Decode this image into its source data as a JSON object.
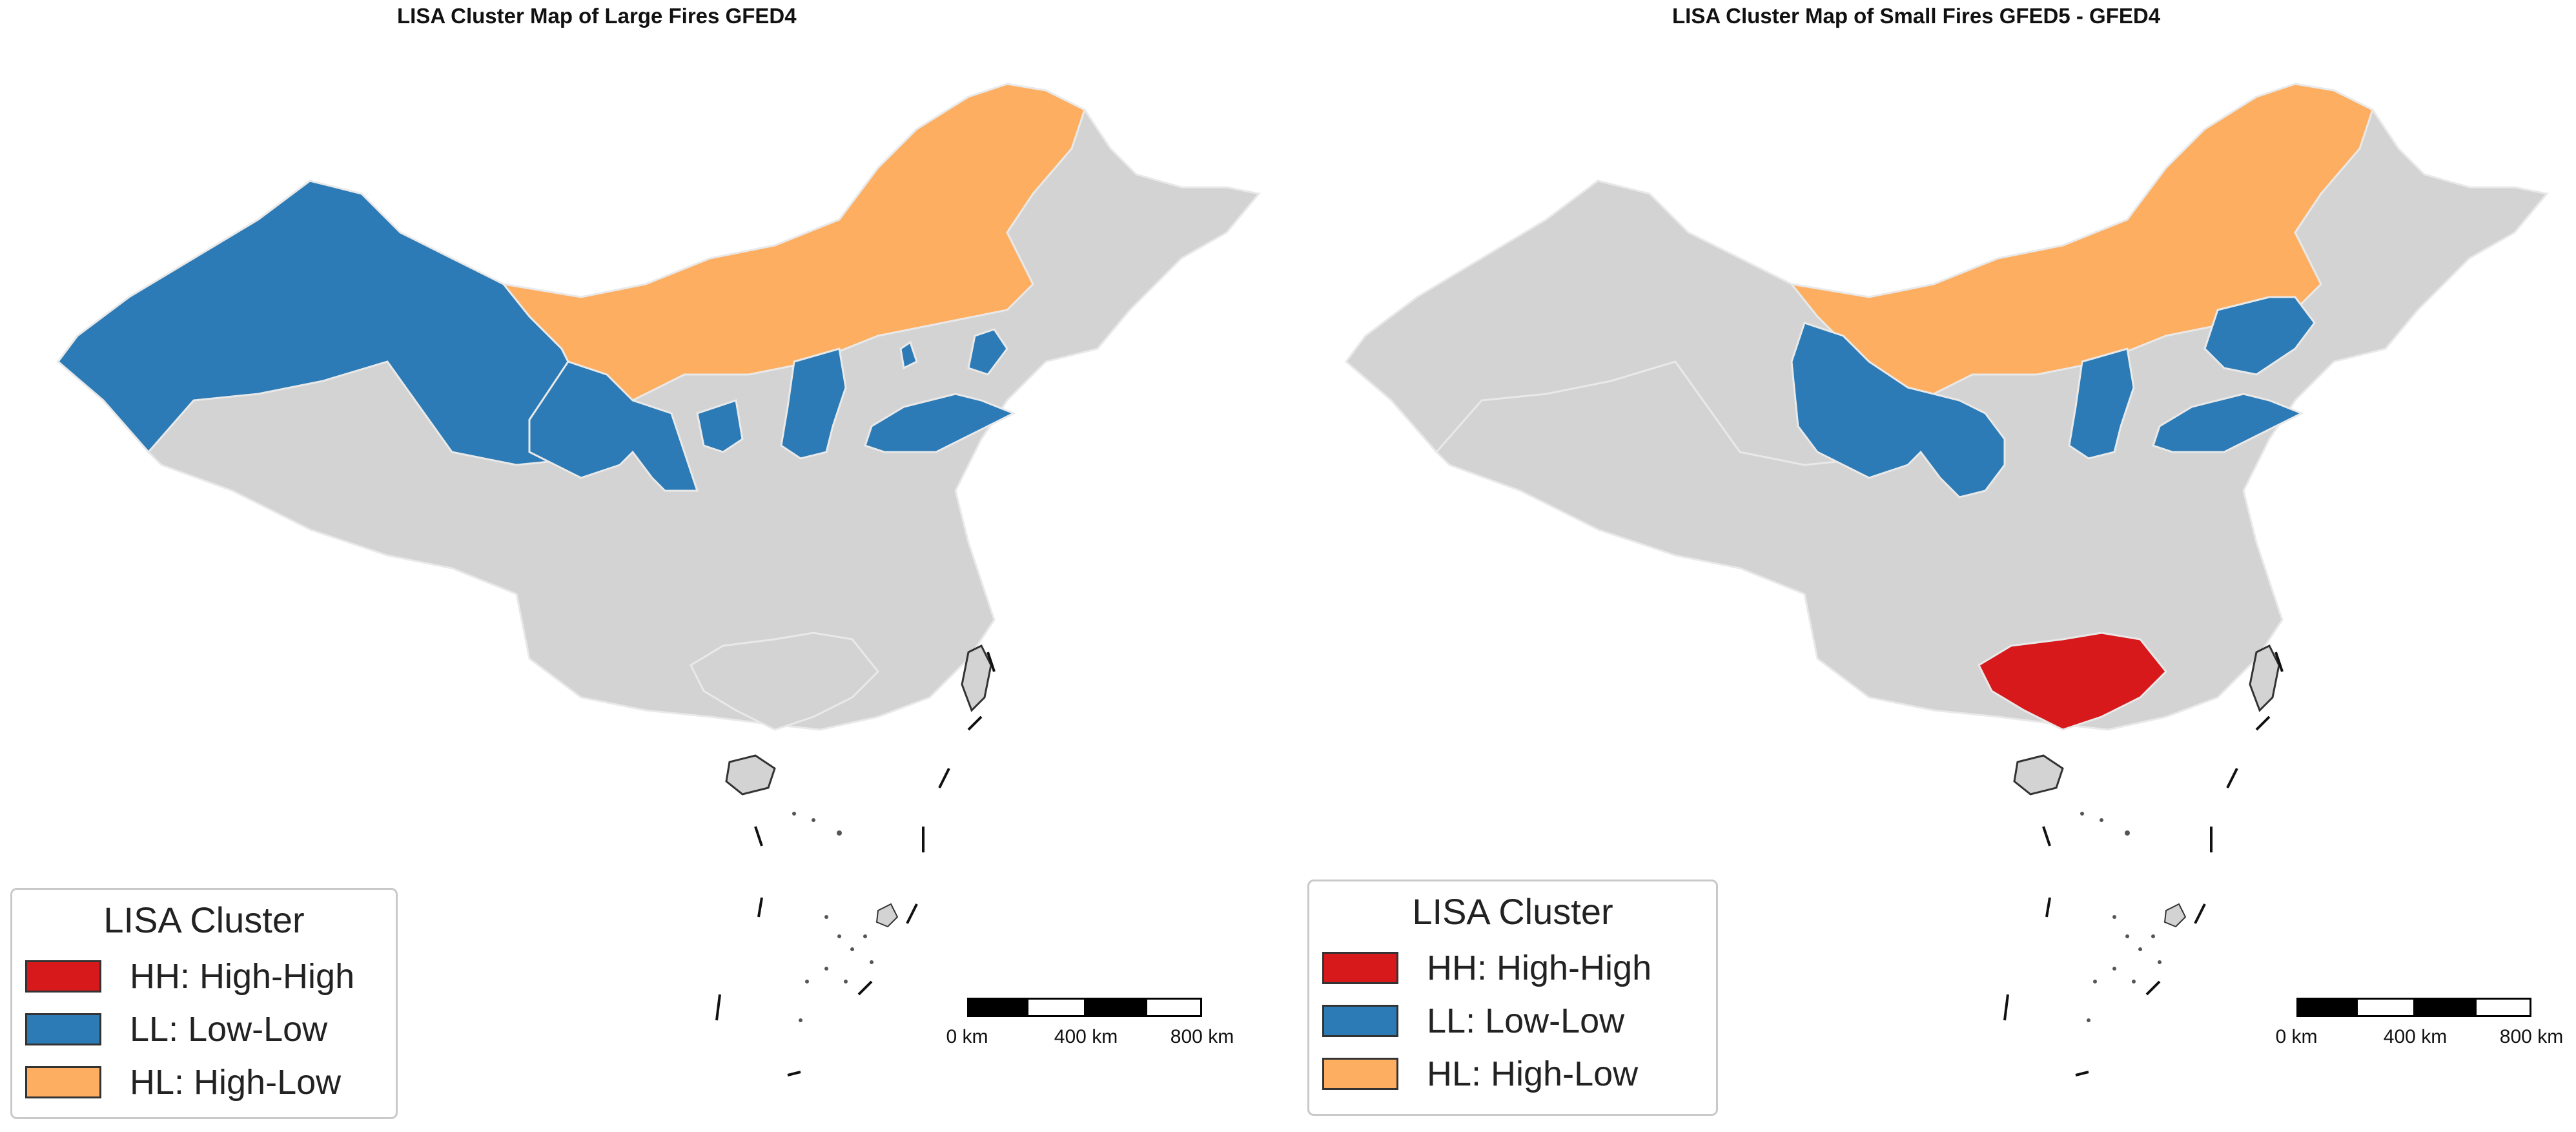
{
  "colors": {
    "HH": "#d7191c",
    "LL": "#2c7bb6",
    "HL": "#fdae61",
    "background_region": "#d3d3d3",
    "region_border": "#e9e9e9"
  },
  "legend": {
    "title": "LISA Cluster",
    "items": [
      {
        "key": "HH",
        "label": "HH: High-High",
        "color": "#d7191c"
      },
      {
        "key": "LL",
        "label": "LL: Low-Low",
        "color": "#2c7bb6"
      },
      {
        "key": "HL",
        "label": "HL: High-Low",
        "color": "#fdae61"
      }
    ]
  },
  "scale_bar": {
    "labels": [
      "0 km",
      "400 km",
      "800 km"
    ]
  },
  "maps": [
    {
      "title": "LISA Cluster Map of Large Fires GFED4",
      "clusters": {
        "northwest-region": "LL",
        "north-corridor-region": "HL",
        "central-west-region": "LL",
        "central-region": "LL",
        "northeast-coast-region": "LL",
        "east-coast-region": "LL",
        "south-region": "none"
      }
    },
    {
      "title": "LISA Cluster Map of Small Fires GFED5 - GFED4",
      "clusters": {
        "northwest-region": "none",
        "north-corridor-region": "HL",
        "central-west-region": "LL",
        "central-region": "LL",
        "northeast-coast-region": "LL",
        "east-coast-region": "LL",
        "south-region": "HH"
      }
    }
  ]
}
